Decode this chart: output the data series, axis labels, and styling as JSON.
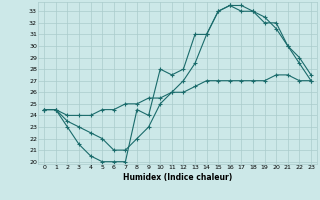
{
  "xlabel": "Humidex (Indice chaleur)",
  "ylabel": "",
  "bg_color": "#cce8e8",
  "grid_color": "#aacccc",
  "line_color": "#1a6b6b",
  "xlim": [
    -0.5,
    23.5
  ],
  "ylim": [
    19.8,
    33.8
  ],
  "xticks": [
    0,
    1,
    2,
    3,
    4,
    5,
    6,
    7,
    8,
    9,
    10,
    11,
    12,
    13,
    14,
    15,
    16,
    17,
    18,
    19,
    20,
    21,
    22,
    23
  ],
  "yticks": [
    20,
    21,
    22,
    23,
    24,
    25,
    26,
    27,
    28,
    29,
    30,
    31,
    32,
    33
  ],
  "line1": {
    "x": [
      0,
      1,
      2,
      3,
      4,
      5,
      6,
      7,
      8,
      9,
      10,
      11,
      12,
      13,
      14,
      15,
      16,
      17,
      18,
      19,
      20,
      21,
      22,
      23
    ],
    "y": [
      24.5,
      24.5,
      23,
      21.5,
      20.5,
      20,
      20,
      20,
      24.5,
      24,
      28,
      27.5,
      28,
      31,
      31,
      33,
      33.5,
      33,
      33,
      32.5,
      31.5,
      30,
      28.5,
      27
    ]
  },
  "line2": {
    "x": [
      0,
      1,
      2,
      3,
      4,
      5,
      6,
      7,
      8,
      9,
      10,
      11,
      12,
      13,
      14,
      15,
      16,
      17,
      18,
      19,
      20,
      21,
      22,
      23
    ],
    "y": [
      24.5,
      24.5,
      23.5,
      23,
      22.5,
      22,
      21,
      21,
      22,
      23,
      25,
      26,
      27,
      28.5,
      31,
      33,
      33.5,
      33.5,
      33,
      32,
      32,
      30,
      29,
      27.5
    ]
  },
  "line3": {
    "x": [
      0,
      1,
      2,
      3,
      4,
      5,
      6,
      7,
      8,
      9,
      10,
      11,
      12,
      13,
      14,
      15,
      16,
      17,
      18,
      19,
      20,
      21,
      22,
      23
    ],
    "y": [
      24.5,
      24.5,
      24,
      24,
      24,
      24.5,
      24.5,
      25,
      25,
      25.5,
      25.5,
      26,
      26,
      26.5,
      27,
      27,
      27,
      27,
      27,
      27,
      27.5,
      27.5,
      27,
      27
    ]
  }
}
